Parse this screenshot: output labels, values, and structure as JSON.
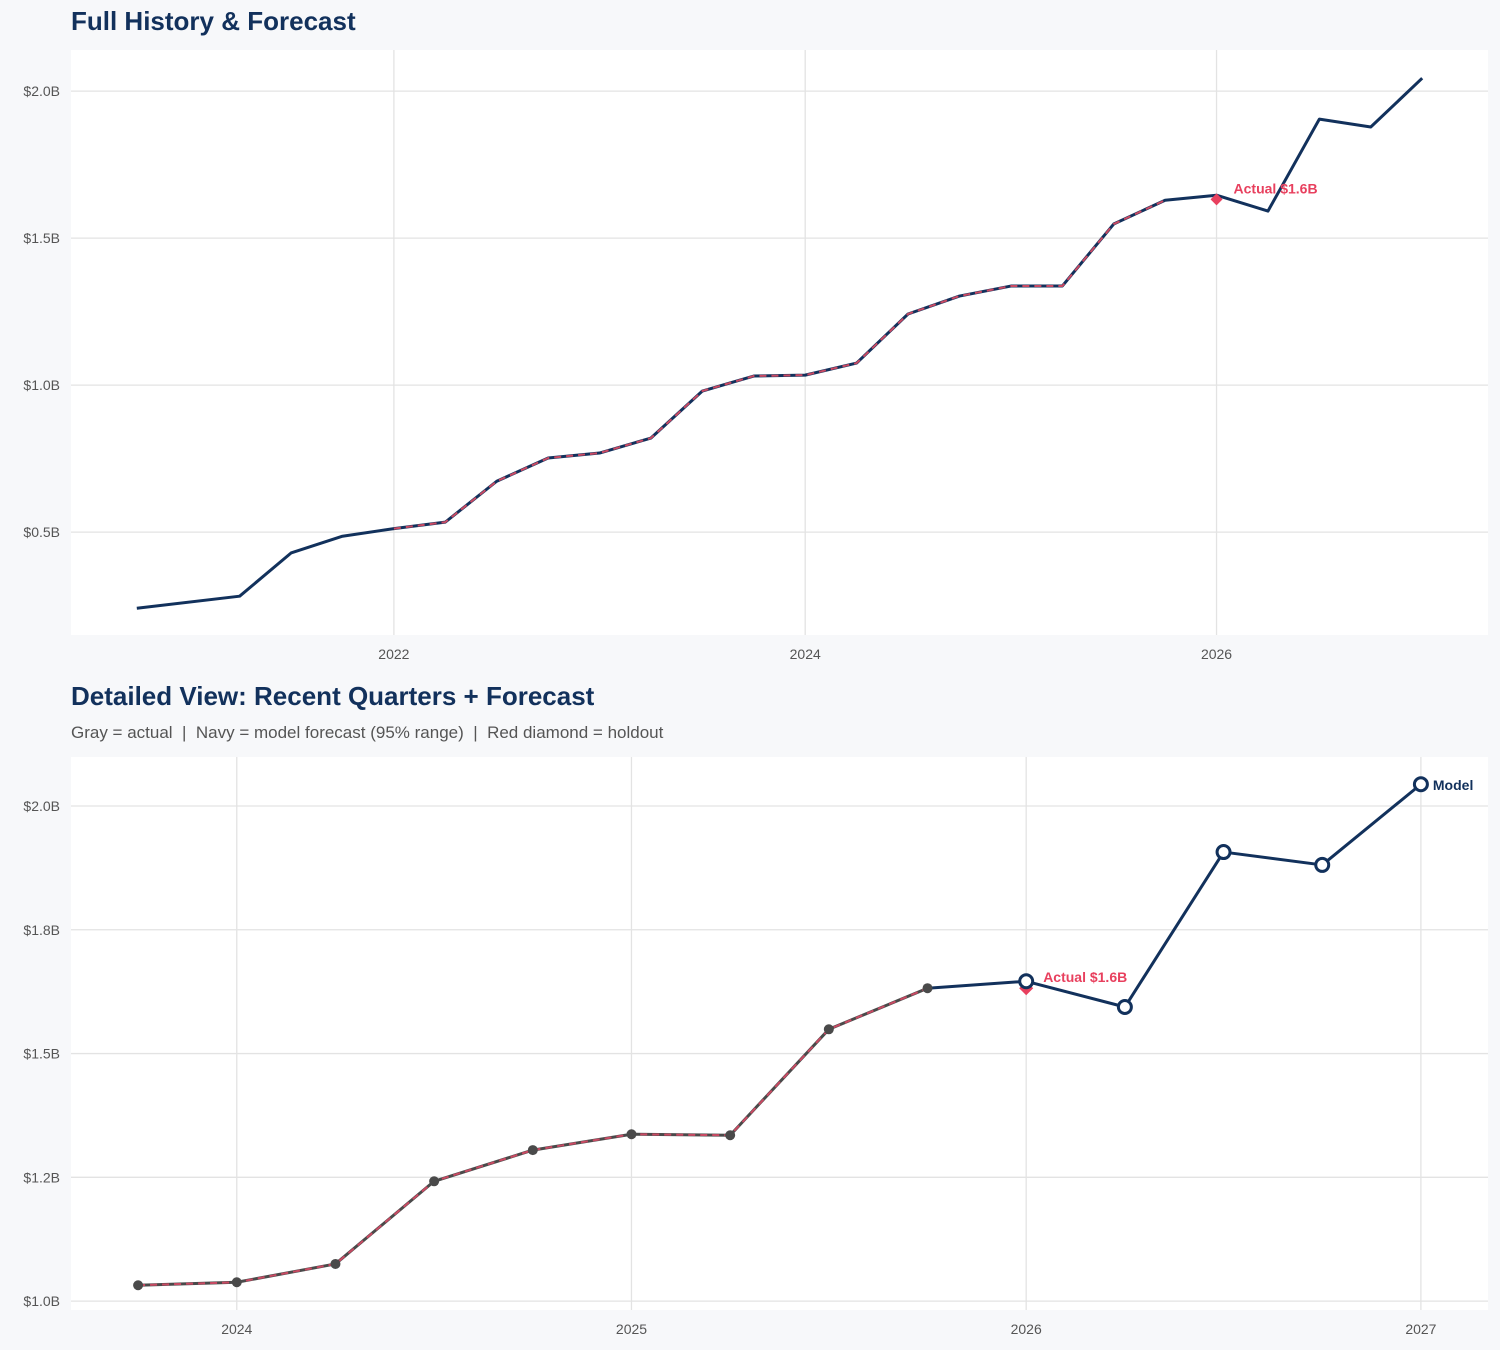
{
  "chart_data": [
    {
      "type": "line",
      "title": "Full History & Forecast",
      "xlim": [
        2020.43,
        2027.32
      ],
      "ylim": [
        0.15,
        2.14
      ],
      "grid": true,
      "x_ticks": [
        2022,
        2024,
        2026
      ],
      "x_tick_labels": [
        "2022",
        "2024",
        "2026"
      ],
      "y_ticks": [
        0.5,
        1.0,
        1.5,
        2.0
      ],
      "y_tick_labels": [
        "$0.5B",
        "$1.0B",
        "$1.5B",
        "$2.0B"
      ],
      "series": [
        {
          "role": "model",
          "color": "#12315c",
          "style": "solid",
          "x": [
            2020.75,
            2021.25,
            2021.5,
            2021.75,
            2022.0,
            2022.25,
            2022.5,
            2022.75,
            2023.0,
            2023.25,
            2023.5,
            2023.75,
            2024.0,
            2024.25,
            2024.5,
            2024.75,
            2025.0,
            2025.25,
            2025.5,
            2025.75,
            2026.0,
            2026.25,
            2026.5,
            2026.75,
            2027.0
          ],
          "y": [
            0.241,
            0.282,
            0.429,
            0.486,
            0.512,
            0.534,
            0.673,
            0.752,
            0.769,
            0.82,
            0.98,
            1.031,
            1.034,
            1.075,
            1.242,
            1.303,
            1.337,
            1.337,
            1.548,
            1.629,
            1.646,
            1.592,
            1.905,
            1.878,
            2.044
          ]
        },
        {
          "role": "fit",
          "color": "#c94a63",
          "style": "dashed",
          "x": [
            2022.0,
            2022.25,
            2022.5,
            2022.75,
            2023.0,
            2023.25,
            2023.5,
            2023.75,
            2024.0,
            2024.25,
            2024.5,
            2024.75,
            2025.0,
            2025.25,
            2025.5,
            2025.75
          ],
          "y": [
            0.512,
            0.534,
            0.673,
            0.752,
            0.769,
            0.82,
            0.98,
            1.031,
            1.034,
            1.075,
            1.242,
            1.303,
            1.337,
            1.337,
            1.548,
            1.629
          ]
        }
      ],
      "holdout": {
        "x": 2026.0,
        "y": 1.632,
        "color": "#e8405e",
        "marker": "diamond"
      },
      "annotations": [
        {
          "text": "Actual $1.6B",
          "color": "#e8405e"
        }
      ]
    },
    {
      "type": "line",
      "title": "Detailed View: Recent Quarters + Forecast",
      "subtitle": "Gray = actual  |  Navy = model forecast (95% range)  |  Red diamond = holdout",
      "xlim": [
        2023.58,
        2027.17
      ],
      "ylim": [
        0.982,
        2.099
      ],
      "grid": true,
      "x_ticks": [
        2024,
        2025,
        2026,
        2027
      ],
      "x_tick_labels": [
        "2024",
        "2025",
        "2026",
        "2027"
      ],
      "y_ticks": [
        1.0,
        1.25,
        1.5,
        1.75,
        2.0
      ],
      "y_tick_labels": [
        "$1.0B",
        "$1.2B",
        "$1.5B",
        "$1.8B",
        "$2.0B"
      ],
      "series": [
        {
          "role": "actual",
          "color": "#4a4a4a",
          "style": "solid",
          "marker": "filled-circle",
          "x": [
            2023.75,
            2024.0,
            2024.25,
            2024.5,
            2024.75,
            2025.0,
            2025.25,
            2025.5,
            2025.75
          ],
          "y": [
            1.032,
            1.038,
            1.075,
            1.242,
            1.305,
            1.337,
            1.335,
            1.549,
            1.632
          ]
        },
        {
          "role": "fit",
          "color": "#c94a63",
          "style": "dashed",
          "x": [
            2023.75,
            2024.0,
            2024.25,
            2024.5,
            2024.75,
            2025.0,
            2025.25,
            2025.5,
            2025.75
          ],
          "y": [
            1.032,
            1.038,
            1.075,
            1.242,
            1.305,
            1.337,
            1.335,
            1.549,
            1.632
          ]
        },
        {
          "role": "model",
          "name": "Model",
          "color": "#12315c",
          "style": "solid",
          "marker": "hollow-circle",
          "x": [
            2025.75,
            2026.0,
            2026.25,
            2026.5,
            2026.75,
            2027.0
          ],
          "y": [
            1.632,
            1.646,
            1.594,
            1.907,
            1.881,
            2.044
          ]
        }
      ],
      "holdout": {
        "x": 2026.0,
        "y": 1.632,
        "color": "#e8405e",
        "marker": "diamond"
      },
      "annotations": [
        {
          "text": "Actual $1.6B",
          "color": "#e8405e"
        },
        {
          "text": "Model",
          "color": "#12315c"
        }
      ]
    }
  ]
}
